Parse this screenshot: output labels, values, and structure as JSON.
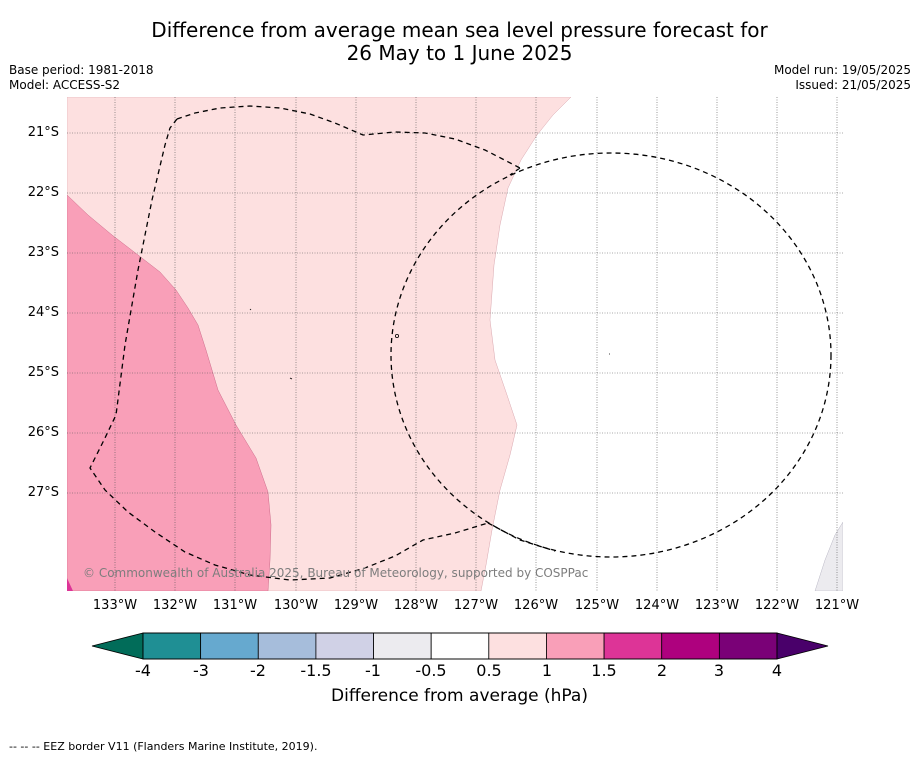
{
  "title": {
    "line1": "Difference from average mean sea level pressure forecast for",
    "line2": "26 May to 1 June 2025"
  },
  "meta": {
    "base_period": "Base period: 1981-2018",
    "model": "Model: ACCESS-S2",
    "model_run": "Model run: 19/05/2025",
    "issued": "Issued: 21/05/2025"
  },
  "map": {
    "lat_labels": [
      "21°S",
      "22°S",
      "23°S",
      "24°S",
      "25°S",
      "26°S",
      "27°S"
    ],
    "lon_labels": [
      "133°W",
      "132°W",
      "131°W",
      "130°W",
      "129°W",
      "128°W",
      "127°W",
      "126°W",
      "125°W",
      "124°W",
      "123°W",
      "122°W",
      "121°W"
    ],
    "copyright": "© Commonwealth of Australia 2025, Bureau of Meteorology, supported by COSPPac",
    "regions": [
      {
        "class": "0.5 to 1",
        "color": "#fde0e0"
      },
      {
        "class": "1 to 1.5",
        "color": "#f99fb8"
      },
      {
        "class": "-0.5 to 0.5",
        "color": "#ffffff"
      },
      {
        "class": "-1 to -0.5",
        "color": "#ecebef"
      }
    ],
    "eez_line_style": "dashed"
  },
  "colorbar": {
    "ticks": [
      "-4",
      "-3",
      "-2",
      "-1.5",
      "-1",
      "-0.5",
      "0.5",
      "1",
      "1.5",
      "2",
      "3",
      "4"
    ],
    "colors": [
      "#1f8f94",
      "#66a9cf",
      "#a6bddb",
      "#d0d1e6",
      "#ecebef",
      "#ffffff",
      "#fde0e0",
      "#f99fb8",
      "#dd3497",
      "#ae017e",
      "#7a0177"
    ],
    "under_color": "#016c59",
    "over_color": "#49006a",
    "label": "Difference from average (hPa)"
  },
  "footer": {
    "legend_text": "--  --  -- EEZ border V11 (Flanders Marine Institute, 2019)."
  }
}
